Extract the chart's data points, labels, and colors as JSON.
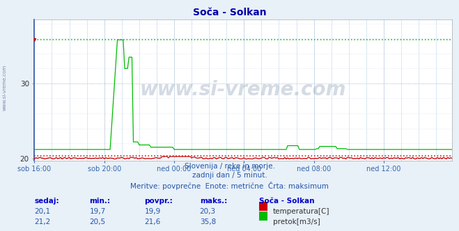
{
  "title": "Soča - Solkan",
  "title_color": "#0000aa",
  "bg_color": "#e8f0f8",
  "plot_bg_color": "#ffffff",
  "ylabel": "",
  "xlabel": "",
  "ylim": [
    19.72,
    38.5
  ],
  "xlim": [
    0,
    287
  ],
  "yticks": [
    20,
    30
  ],
  "xtick_labels": [
    "sob 16:00",
    "sob 20:00",
    "ned 00:00",
    "ned 04:00",
    "ned 08:00",
    "ned 12:00"
  ],
  "xtick_positions": [
    0,
    48,
    96,
    144,
    192,
    240
  ],
  "line1_color": "#cc0000",
  "line2_color": "#00bb00",
  "line1_max": 20.3,
  "line2_max": 35.8,
  "grid_color": "#aabbcc",
  "grid_minor_color": "#ccddee",
  "watermark_text": "www.si-vreme.com",
  "watermark_color": "#1a3a6a",
  "watermark_alpha": 0.18,
  "sidebar_text": "www.si-vreme.com",
  "subtitle1": "Slovenija / reke in morje.",
  "subtitle2": "zadnji dan / 5 minut.",
  "subtitle3": "Meritve: povprečne  Enote: metrične  Črta: maksimum",
  "subtitle_color": "#2255aa",
  "table_headers": [
    "sedaj:",
    "min.:",
    "povpr.:",
    "maks.:",
    "Soča - Solkan"
  ],
  "table_row1": [
    "20,1",
    "19,7",
    "19,9",
    "20,3",
    "temperatura[C]"
  ],
  "table_row2": [
    "21,2",
    "20,5",
    "21,6",
    "35,8",
    "pretok[m3/s]"
  ],
  "legend_color1": "#cc0000",
  "legend_color2": "#00bb00",
  "n_points": 288
}
